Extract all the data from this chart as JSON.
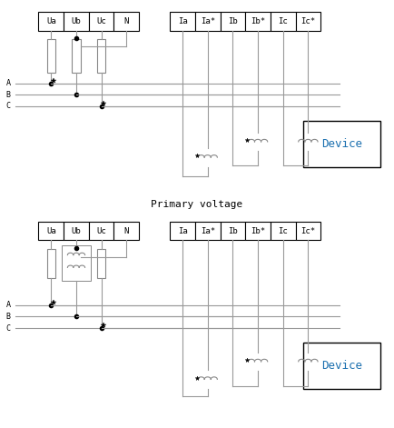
{
  "title1": "Primary voltage",
  "fig_width": 4.34,
  "fig_height": 4.71,
  "bg_color": "#ffffff",
  "line_color": "#999999",
  "box_color": "#000000",
  "text_color": "#000000",
  "device_text_color": "#1a6faf",
  "terminal_labels_top": [
    "Ua",
    "Ub",
    "Uc",
    "N"
  ],
  "terminal_labels_current": [
    "Ia",
    "Ia*",
    "Ib",
    "Ib*",
    "Ic",
    "Ic*"
  ],
  "phase_labels": [
    "A",
    "B",
    "C"
  ],
  "device_label": "Device"
}
